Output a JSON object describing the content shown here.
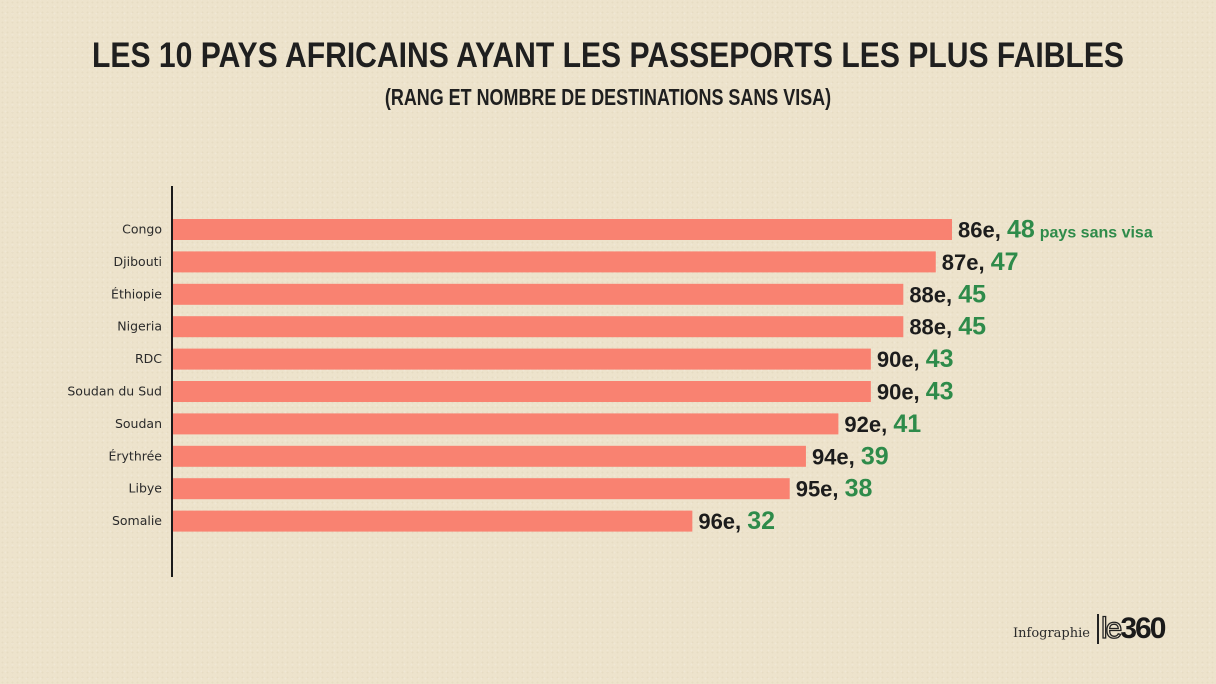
{
  "chart_data": {
    "type": "bar",
    "orientation": "horizontal",
    "title": "LES 10 PAYS AFRICAINS AYANT LES PASSEPORTS LES PLUS FAIBLES",
    "subtitle": "(RANG ET NOMBRE DE DESTINATIONS SANS VISA)",
    "categories": [
      "Congo",
      "Djibouti",
      "Éthiopie",
      "Nigeria",
      "RDC",
      "Soudan du Sud",
      "Soudan",
      "Érythrée",
      "Libye",
      "Somalie"
    ],
    "values": [
      48,
      47,
      45,
      45,
      43,
      43,
      41,
      39,
      38,
      32
    ],
    "ranks": [
      "86e,",
      "87e,",
      "88e,",
      "88e,",
      "90e,",
      "90e,",
      "92e,",
      "94e,",
      "95e,",
      "96e,"
    ],
    "first_label_suffix": "pays sans visa",
    "xlabel": "",
    "ylabel": "",
    "xlim": [
      0,
      48
    ],
    "grid": false,
    "colors": {
      "bar": "#f98271",
      "value_text": "#2e8b4a",
      "rank_text": "#1c1c1c",
      "axis": "#1a1a1a"
    }
  },
  "footer": {
    "credit": "Infographie",
    "logo_le": "le",
    "logo_num": "360"
  }
}
